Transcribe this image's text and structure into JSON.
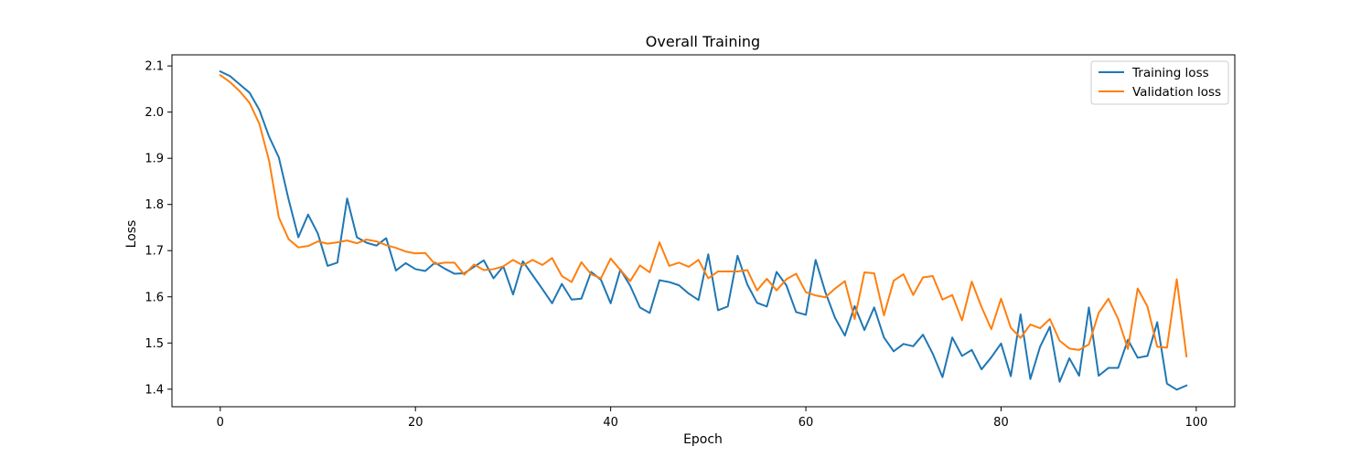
{
  "chart_data": {
    "type": "line",
    "title": "Overall Training",
    "xlabel": "Epoch",
    "ylabel": "Loss",
    "xlim": [
      -4.95,
      103.95
    ],
    "ylim": [
      1.362,
      2.124
    ],
    "xticks": [
      0,
      20,
      40,
      60,
      80,
      100
    ],
    "yticks": [
      1.4,
      1.5,
      1.6,
      1.7,
      1.8,
      1.9,
      2.0,
      2.1
    ],
    "xtick_labels": [
      "0",
      "20",
      "40",
      "60",
      "80",
      "100"
    ],
    "ytick_labels": [
      "1.4",
      "1.5",
      "1.6",
      "1.7",
      "1.8",
      "1.9",
      "2.0",
      "2.1"
    ],
    "grid": false,
    "legend_position": "top-right",
    "series": [
      {
        "name": "Training loss",
        "color": "#1f77b4",
        "values": [
          2.088,
          2.078,
          2.06,
          2.042,
          2.005,
          1.947,
          1.902,
          1.811,
          1.729,
          1.778,
          1.737,
          1.667,
          1.674,
          1.813,
          1.729,
          1.717,
          1.711,
          1.727,
          1.657,
          1.673,
          1.66,
          1.656,
          1.674,
          1.661,
          1.65,
          1.651,
          1.665,
          1.679,
          1.64,
          1.666,
          1.605,
          1.677,
          1.647,
          1.617,
          1.586,
          1.628,
          1.594,
          1.596,
          1.654,
          1.637,
          1.586,
          1.659,
          1.624,
          1.577,
          1.565,
          1.636,
          1.632,
          1.625,
          1.607,
          1.593,
          1.692,
          1.571,
          1.579,
          1.689,
          1.627,
          1.587,
          1.579,
          1.654,
          1.625,
          1.567,
          1.561,
          1.68,
          1.61,
          1.554,
          1.516,
          1.58,
          1.528,
          1.577,
          1.512,
          1.482,
          1.498,
          1.493,
          1.518,
          1.477,
          1.426,
          1.512,
          1.472,
          1.485,
          1.443,
          1.469,
          1.499,
          1.428,
          1.562,
          1.422,
          1.492,
          1.535,
          1.416,
          1.467,
          1.429,
          1.577,
          1.429,
          1.446,
          1.446,
          1.507,
          1.468,
          1.472,
          1.545,
          1.412,
          1.399,
          1.408
        ]
      },
      {
        "name": "Validation loss",
        "color": "#ff7f0e",
        "values": [
          2.08,
          2.065,
          2.045,
          2.02,
          1.975,
          1.895,
          1.772,
          1.725,
          1.707,
          1.71,
          1.72,
          1.715,
          1.718,
          1.722,
          1.716,
          1.724,
          1.72,
          1.712,
          1.706,
          1.698,
          1.694,
          1.695,
          1.671,
          1.674,
          1.674,
          1.648,
          1.67,
          1.658,
          1.66,
          1.666,
          1.68,
          1.668,
          1.68,
          1.669,
          1.684,
          1.645,
          1.632,
          1.675,
          1.649,
          1.64,
          1.683,
          1.658,
          1.634,
          1.668,
          1.653,
          1.718,
          1.667,
          1.674,
          1.665,
          1.68,
          1.64,
          1.655,
          1.655,
          1.655,
          1.658,
          1.614,
          1.639,
          1.614,
          1.638,
          1.65,
          1.61,
          1.603,
          1.599,
          1.618,
          1.634,
          1.552,
          1.653,
          1.651,
          1.56,
          1.635,
          1.649,
          1.604,
          1.642,
          1.645,
          1.594,
          1.604,
          1.549,
          1.633,
          1.578,
          1.53,
          1.596,
          1.533,
          1.511,
          1.54,
          1.532,
          1.552,
          1.505,
          1.488,
          1.485,
          1.497,
          1.565,
          1.596,
          1.552,
          1.487,
          1.618,
          1.579,
          1.492,
          1.49,
          1.638,
          1.471
        ]
      }
    ]
  }
}
